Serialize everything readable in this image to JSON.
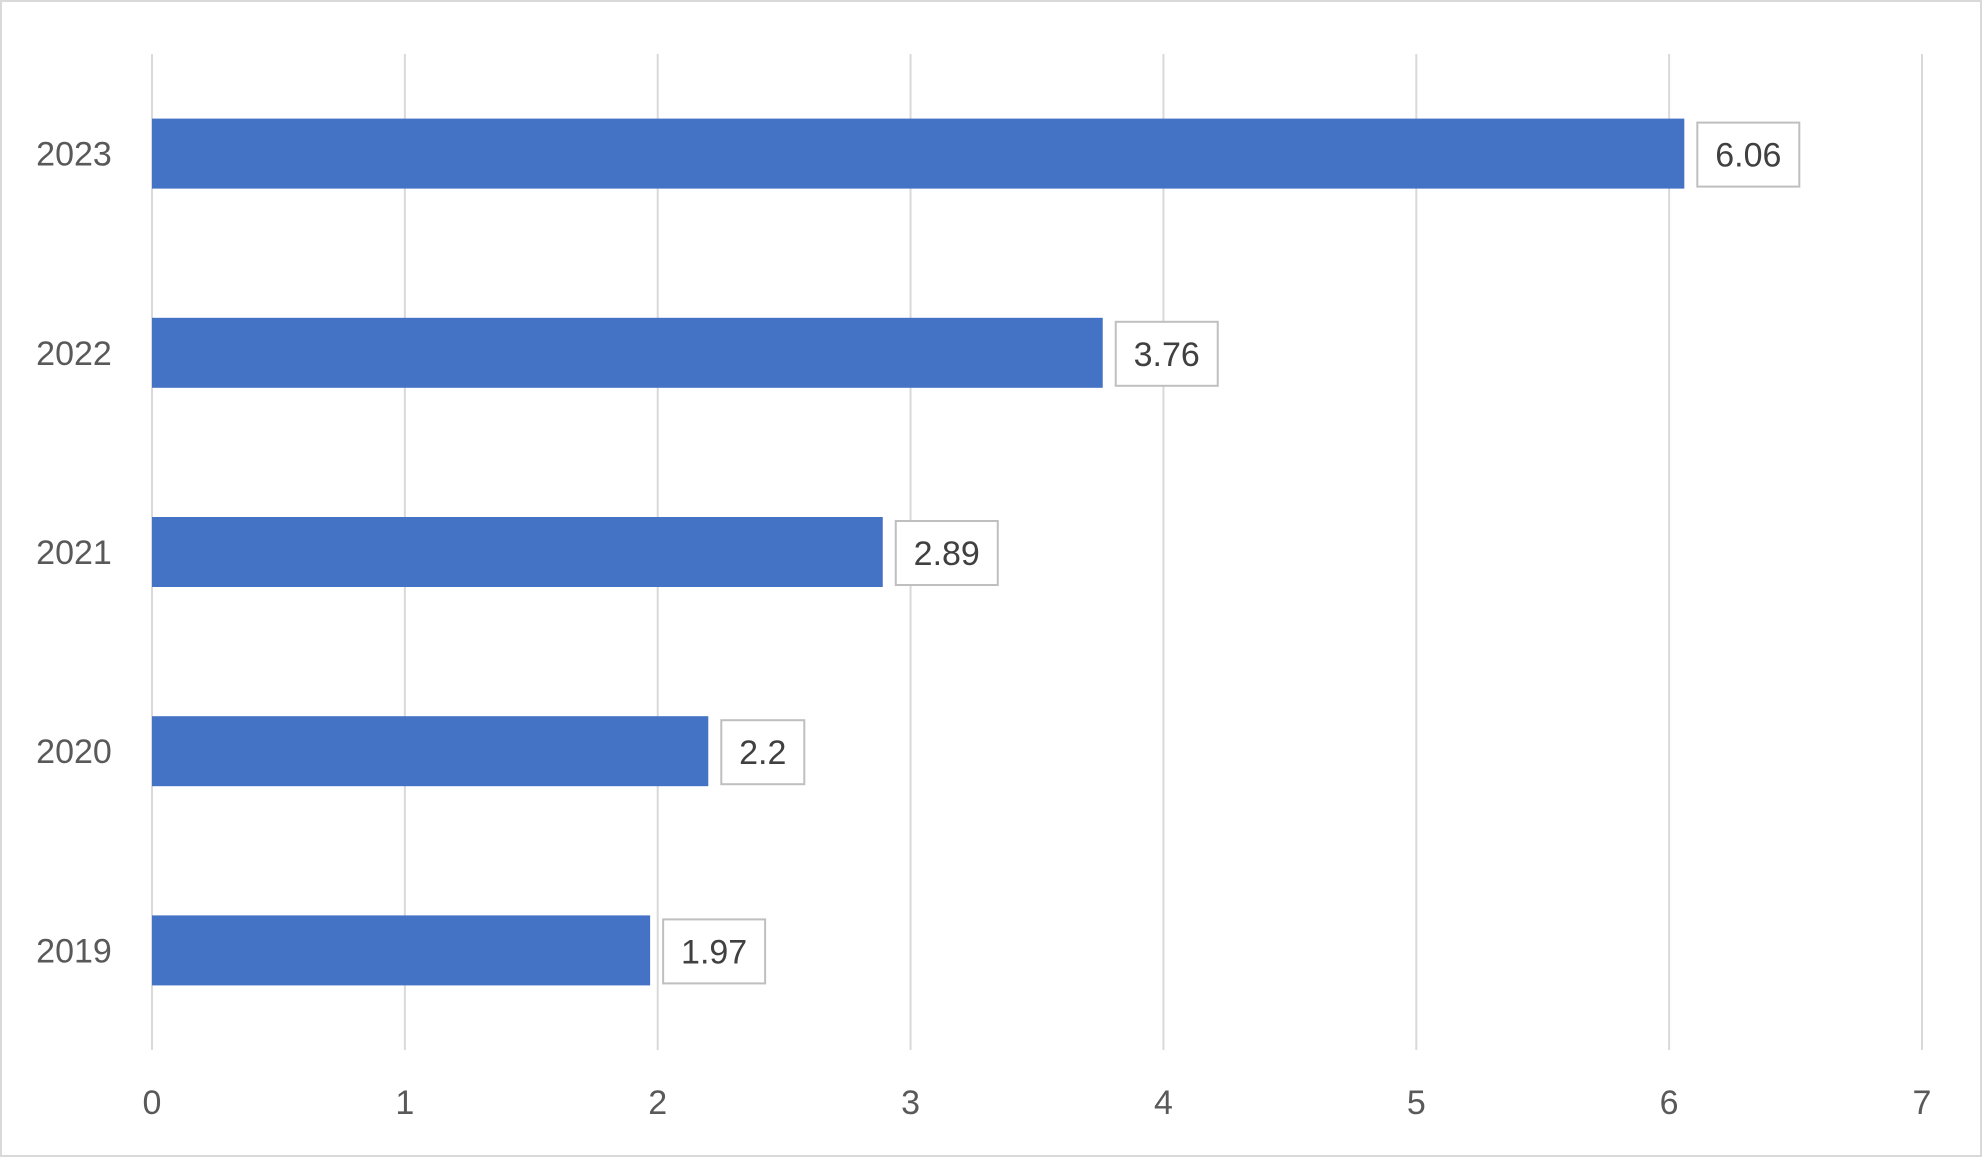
{
  "chart_data": {
    "type": "bar",
    "orientation": "horizontal",
    "categories": [
      "2019",
      "2020",
      "2021",
      "2022",
      "2023"
    ],
    "values": [
      1.97,
      2.2,
      2.89,
      3.76,
      6.06
    ],
    "data_labels": [
      "1.97",
      "2.2",
      "2.89",
      "3.76",
      "6.06"
    ],
    "title": "",
    "xlabel": "",
    "ylabel": "",
    "xlim": [
      0,
      7
    ],
    "x_ticks": [
      0,
      1,
      2,
      3,
      4,
      5,
      6,
      7
    ],
    "x_tick_labels": [
      "0",
      "1",
      "2",
      "3",
      "4",
      "5",
      "6",
      "7"
    ],
    "grid": true,
    "legend": "none",
    "colors": {
      "bar": "#4472c4",
      "grid": "#d9d9d9",
      "text": "#595959",
      "label_border": "#bfbfbf"
    }
  }
}
